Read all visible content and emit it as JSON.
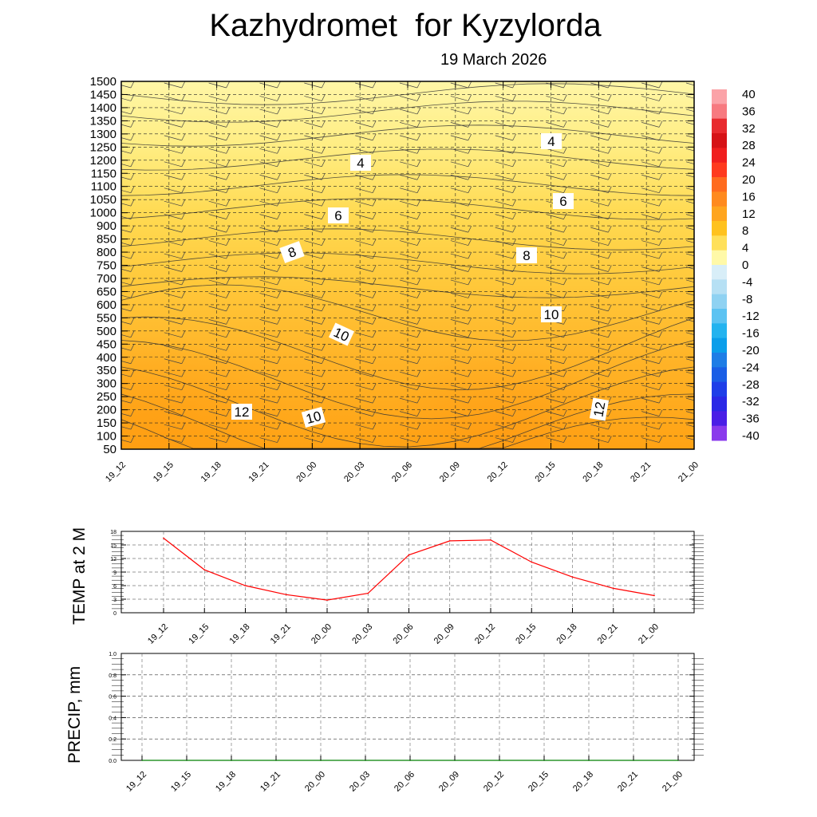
{
  "title": "Kazhydromet  for Kyzylorda",
  "subtitle": "19 March 2026",
  "time_labels": [
    "19_12",
    "19_15",
    "19_18",
    "19_21",
    "20_00",
    "20_03",
    "20_06",
    "20_09",
    "20_12",
    "20_15",
    "20_18",
    "20_21",
    "21_00"
  ],
  "chart_data": [
    {
      "type": "heatmap",
      "title": "Kazhydromet  for Kyzylorda",
      "subtitle": "19 March 2026",
      "x": [
        "19_12",
        "19_15",
        "19_18",
        "19_21",
        "20_00",
        "20_03",
        "20_06",
        "20_09",
        "20_12",
        "20_15",
        "20_18",
        "20_21",
        "21_00"
      ],
      "y_levels": [
        50,
        100,
        150,
        200,
        250,
        300,
        350,
        400,
        450,
        500,
        550,
        600,
        650,
        700,
        750,
        800,
        850,
        900,
        1000,
        1050,
        1100,
        1150,
        1200,
        1250,
        1300,
        1350,
        1400,
        1450,
        1500
      ],
      "y_ticks": [
        "50",
        "100",
        "150",
        "200",
        "250",
        "300",
        "350",
        "400",
        "450",
        "500",
        "550",
        "600",
        "650",
        "700",
        "750",
        "800",
        "850",
        "900",
        "1000",
        "1050",
        "1100",
        "1150",
        "1200",
        "1250",
        "1300",
        "1350",
        "1400",
        "1450",
        "1500"
      ],
      "contour_labels": [
        "4",
        "4",
        "6",
        "6",
        "8",
        "8",
        "10",
        "10",
        "10",
        "12",
        "12"
      ],
      "colorbar": {
        "ticks": [
          "40",
          "36",
          "32",
          "28",
          "24",
          "20",
          "16",
          "12",
          "8",
          "4",
          "0",
          "-4",
          "-8",
          "-12",
          "-16",
          "-20",
          "-24",
          "-28",
          "-32",
          "-36",
          "-40"
        ],
        "colors_high": [
          "#fba3a8",
          "#f77a80",
          "#e82a2e",
          "#d61216",
          "#f01e1e",
          "#ff3a1e",
          "#ff6b1e",
          "#ff8a1e",
          "#ffa51e",
          "#ffc21e",
          "#ffe05a",
          "#fff9a8"
        ],
        "colors_low": [
          "#d8eef8",
          "#b6e0f4",
          "#8fd2f2",
          "#5cc3f2",
          "#23b3ef",
          "#0a9eea",
          "#1e7de6",
          "#1a5ee6",
          "#1e3ee8",
          "#2a28e6",
          "#4a1ee6",
          "#8a3aec"
        ]
      },
      "wind_barbs": true
    },
    {
      "type": "line",
      "ylabel": "TEMP at 2 M",
      "x": [
        "19_12",
        "19_15",
        "19_18",
        "19_21",
        "20_00",
        "20_03",
        "20_06",
        "20_09",
        "20_12",
        "20_15",
        "20_18",
        "20_21",
        "21_00"
      ],
      "series": [
        {
          "name": "TEMP at 2 M",
          "values": [
            16.5,
            9.5,
            6.0,
            4.0,
            2.8,
            4.3,
            12.8,
            15.9,
            16.1,
            11.2,
            7.9,
            5.4,
            3.8
          ],
          "color": "#ff0000"
        }
      ],
      "ylim": [
        0,
        18
      ],
      "y_ticks": [
        "0",
        "3",
        "6",
        "9",
        "12",
        "15",
        "18"
      ]
    },
    {
      "type": "line",
      "ylabel": "PRECIP, mm",
      "x": [
        "19_12",
        "19_15",
        "19_18",
        "19_21",
        "20_00",
        "20_03",
        "20_06",
        "20_09",
        "20_12",
        "20_15",
        "20_18",
        "20_21",
        "21_00"
      ],
      "series": [
        {
          "name": "PRECIP",
          "values": [
            0,
            0,
            0,
            0,
            0,
            0,
            0,
            0,
            0,
            0,
            0,
            0,
            0
          ],
          "color": "#008000"
        }
      ],
      "ylim": [
        0,
        1.0
      ],
      "y_ticks": [
        "0.0",
        "0.2",
        "0.4",
        "0.6",
        "0.8",
        "1.0"
      ]
    }
  ]
}
